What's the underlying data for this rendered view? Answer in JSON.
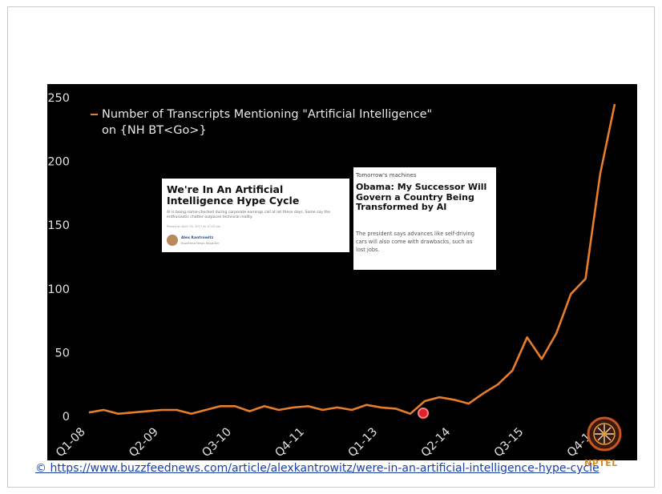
{
  "slide": {
    "source_link": "© https://www.buzzfeednews.com/article/alexkantrowitz/were-in-an-artificial-intelligence-hype-cycle",
    "logo_text": "NPTEL"
  },
  "legend": {
    "line1": "Number of Transcripts Mentioning \"Artificial Intelligence\"",
    "line2": "on {NH BT<Go>}"
  },
  "article1": {
    "title": "We're In An Artificial Intelligence Hype Cycle",
    "subtitle": "AI is being name-checked during corporate earnings call at lot these days. Some say the enthusiastic chatter outpaces technical reality.",
    "date": "Posted on April 28, 2017 at 10:23 pm",
    "author": "Alex Kantrowitz",
    "role": "BuzzFeed News Reporter"
  },
  "article2": {
    "kicker": "Tomorrow's machines",
    "title": "Obama: My Successor Will Govern a Country Being Transformed by AI",
    "body": "The president says advances like self-driving cars will also come with drawbacks, such as lost jobs."
  },
  "chart_data": {
    "type": "line",
    "title": "",
    "xlabel": "",
    "ylabel": "",
    "ylim": [
      0,
      250
    ],
    "yticks": [
      0,
      50,
      100,
      150,
      200,
      250
    ],
    "xtick_labels": [
      "Q1-08",
      "Q2-09",
      "Q3-10",
      "Q4-11",
      "Q1-13",
      "Q2-14",
      "Q3-15",
      "Q4-16"
    ],
    "xtick_indices": [
      0,
      5,
      10,
      15,
      20,
      25,
      30,
      35
    ],
    "grid": false,
    "legend_position": "top-left",
    "series": [
      {
        "name": "Number of Transcripts Mentioning \"Artificial Intelligence\" on {NH BT<Go>}",
        "color": "#e87e2a",
        "x": [
          "Q1-08",
          "Q2-08",
          "Q3-08",
          "Q4-08",
          "Q1-09",
          "Q2-09",
          "Q3-09",
          "Q4-09",
          "Q1-10",
          "Q2-10",
          "Q3-10",
          "Q4-10",
          "Q1-11",
          "Q2-11",
          "Q3-11",
          "Q4-11",
          "Q1-12",
          "Q2-12",
          "Q3-12",
          "Q4-12",
          "Q1-13",
          "Q2-13",
          "Q3-13",
          "Q4-13",
          "Q1-14",
          "Q2-14",
          "Q3-14",
          "Q4-14",
          "Q1-15",
          "Q2-15",
          "Q3-15",
          "Q4-15",
          "Q1-16",
          "Q2-16",
          "Q3-16",
          "Q4-16",
          "Q1-17"
        ],
        "values": [
          3,
          5,
          2,
          3,
          4,
          5,
          5,
          2,
          5,
          8,
          8,
          4,
          8,
          5,
          7,
          8,
          5,
          7,
          5,
          9,
          7,
          6,
          2,
          12,
          15,
          13,
          10,
          18,
          25,
          36,
          62,
          45,
          65,
          96,
          108,
          190,
          245
        ]
      }
    ]
  }
}
